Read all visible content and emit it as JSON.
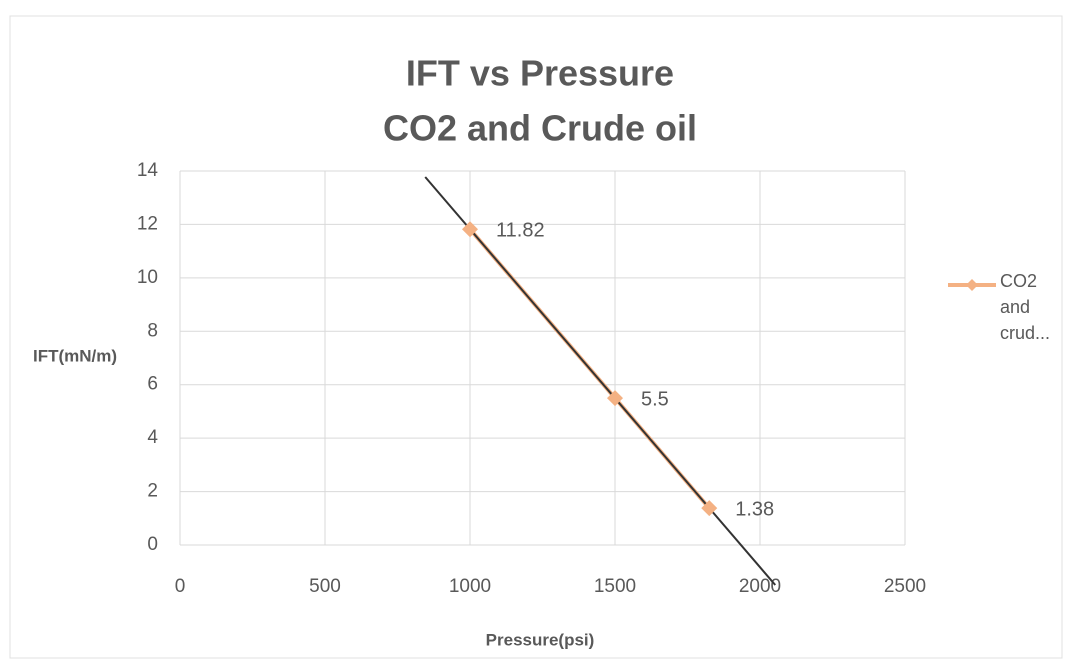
{
  "chart_data": {
    "type": "line",
    "title": [
      "IFT vs Pressure",
      "CO2 and Crude oil"
    ],
    "x_label": "Pressure(psi)",
    "y_label": "IFT(mN/m)",
    "x": [
      1000,
      1500,
      1825
    ],
    "series": [
      {
        "name": "CO2 and crud...",
        "color": "#f4b183",
        "values": [
          11.82,
          5.5,
          1.38
        ]
      }
    ],
    "xlim": [
      0,
      2500
    ],
    "xticks": [
      0,
      500,
      1000,
      1500,
      2000,
      2500
    ],
    "ylim": [
      0,
      14
    ],
    "yticks": [
      0,
      2,
      4,
      6,
      8,
      10,
      12,
      14
    ],
    "grid": true,
    "trendline": {
      "type": "linear",
      "color": "#333333"
    },
    "legend": "right"
  }
}
